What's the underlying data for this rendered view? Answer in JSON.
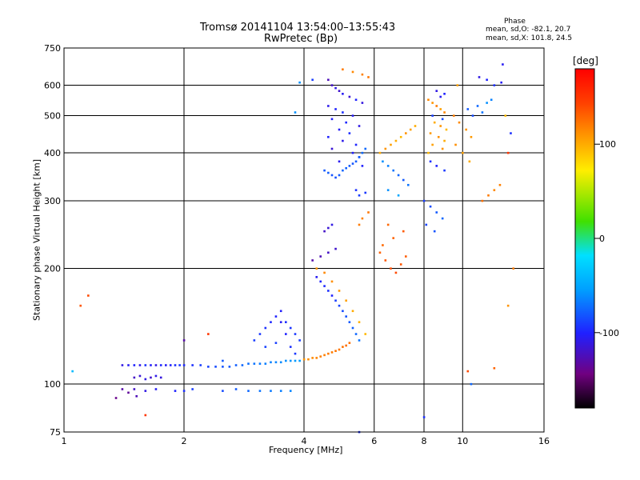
{
  "title_line1": "Tromsø 20141104 13:54:00–13:55:43",
  "title_line2": "RwPretec (Bp)",
  "phase_header": "Phase",
  "phase_o": "mean, sd,O: -82.1, 20.7",
  "phase_x": "mean, sd,X: 101.8, 24.5",
  "colorbar": {
    "unit": "[deg]",
    "ticks": [
      {
        "value": 100,
        "label": "100"
      },
      {
        "value": 0,
        "label": "0"
      },
      {
        "value": -100,
        "label": "-100"
      }
    ],
    "range": [
      -180,
      180
    ]
  },
  "chart_data": {
    "type": "scatter",
    "xlabel": "Frequency [MHz]",
    "ylabel": "Stationary phase Virtual Height [km]",
    "xscale": "log",
    "yscale": "log",
    "xlim": [
      1,
      16
    ],
    "ylim": [
      75,
      750
    ],
    "xticks": [
      {
        "v": 1,
        "label": "1"
      },
      {
        "v": 2,
        "label": "2"
      },
      {
        "v": 4,
        "label": "4"
      },
      {
        "v": 6,
        "label": "6"
      },
      {
        "v": 8,
        "label": "8"
      },
      {
        "v": 10,
        "label": "10"
      },
      {
        "v": 16,
        "label": "16"
      }
    ],
    "yticks": [
      {
        "v": 75,
        "label": "75"
      },
      {
        "v": 100,
        "label": "100"
      },
      {
        "v": 200,
        "label": "200"
      },
      {
        "v": 300,
        "label": "300"
      },
      {
        "v": 400,
        "label": "400"
      },
      {
        "v": 500,
        "label": "500"
      },
      {
        "v": 600,
        "label": "600"
      },
      {
        "v": 750,
        "label": "750"
      }
    ],
    "grid_x": [
      2,
      4,
      6,
      8,
      10
    ],
    "grid_y": [
      100,
      200,
      300,
      400,
      500,
      600
    ],
    "grid": true,
    "points": [
      [
        1.4,
        112,
        -110
      ],
      [
        1.45,
        112,
        -105
      ],
      [
        1.5,
        112,
        -100
      ],
      [
        1.55,
        112,
        -108
      ],
      [
        1.6,
        112,
        -95
      ],
      [
        1.65,
        112,
        -102
      ],
      [
        1.7,
        112,
        -110
      ],
      [
        1.75,
        112,
        -98
      ],
      [
        1.8,
        112,
        -104
      ],
      [
        1.85,
        112,
        -100
      ],
      [
        1.9,
        112,
        -96
      ],
      [
        1.95,
        112,
        -92
      ],
      [
        2.0,
        112,
        -98
      ],
      [
        2.1,
        112,
        -95
      ],
      [
        2.2,
        112,
        -90
      ],
      [
        2.3,
        111,
        -88
      ],
      [
        2.4,
        111,
        -85
      ],
      [
        2.5,
        111,
        -82
      ],
      [
        2.6,
        111,
        -80
      ],
      [
        2.7,
        112,
        -78
      ],
      [
        2.8,
        112,
        -75
      ],
      [
        2.9,
        113,
        -72
      ],
      [
        3.0,
        113,
        -70
      ],
      [
        3.1,
        113,
        -68
      ],
      [
        3.2,
        113,
        -66
      ],
      [
        3.3,
        114,
        -65
      ],
      [
        3.4,
        114,
        -64
      ],
      [
        3.5,
        114,
        -62
      ],
      [
        3.6,
        115,
        -60
      ],
      [
        3.7,
        115,
        -58
      ],
      [
        3.8,
        115,
        -56
      ],
      [
        3.9,
        115,
        -55
      ],
      [
        4.0,
        116,
        110
      ],
      [
        4.1,
        116,
        112
      ],
      [
        4.2,
        117,
        114
      ],
      [
        4.3,
        117,
        116
      ],
      [
        4.4,
        118,
        118
      ],
      [
        4.5,
        119,
        118
      ],
      [
        4.6,
        120,
        120
      ],
      [
        4.7,
        121,
        120
      ],
      [
        4.8,
        122,
        122
      ],
      [
        4.9,
        123,
        122
      ],
      [
        5.0,
        125,
        124
      ],
      [
        5.1,
        126,
        125
      ],
      [
        5.2,
        128,
        125
      ],
      [
        1.5,
        104,
        -120
      ],
      [
        1.55,
        105,
        -115
      ],
      [
        1.6,
        103,
        -110
      ],
      [
        1.65,
        104,
        -118
      ],
      [
        1.7,
        105,
        -108
      ],
      [
        1.75,
        104,
        -112
      ],
      [
        1.4,
        97,
        -130
      ],
      [
        1.5,
        97,
        -120
      ],
      [
        1.6,
        96,
        -110
      ],
      [
        1.7,
        97,
        -105
      ],
      [
        1.9,
        96,
        -100
      ],
      [
        2.0,
        96,
        -95
      ],
      [
        2.1,
        97,
        -90
      ],
      [
        2.5,
        96,
        -85
      ],
      [
        2.7,
        97,
        -80
      ],
      [
        2.9,
        96,
        -75
      ],
      [
        3.1,
        96,
        -70
      ],
      [
        3.3,
        96,
        -68
      ],
      [
        3.5,
        96,
        -66
      ],
      [
        3.7,
        96,
        -64
      ],
      [
        1.35,
        92,
        -140
      ],
      [
        1.45,
        95,
        -135
      ],
      [
        1.52,
        93,
        -125
      ],
      [
        4.6,
        620,
        -125
      ],
      [
        4.7,
        600,
        -120
      ],
      [
        4.8,
        590,
        -110
      ],
      [
        4.9,
        580,
        -118
      ],
      [
        5.0,
        570,
        -105
      ],
      [
        5.2,
        560,
        -115
      ],
      [
        5.4,
        550,
        -100
      ],
      [
        5.6,
        540,
        -112
      ],
      [
        4.6,
        530,
        -108
      ],
      [
        4.8,
        520,
        -100
      ],
      [
        5.0,
        510,
        -95
      ],
      [
        5.3,
        500,
        -105
      ],
      [
        4.7,
        490,
        -102
      ],
      [
        5.1,
        480,
        -98
      ],
      [
        5.5,
        470,
        -110
      ],
      [
        4.9,
        460,
        -104
      ],
      [
        5.2,
        450,
        -96
      ],
      [
        4.6,
        440,
        -100
      ],
      [
        5.0,
        430,
        -108
      ],
      [
        5.4,
        420,
        -99
      ],
      [
        4.7,
        410,
        -115
      ],
      [
        5.3,
        400,
        -102
      ],
      [
        5.5,
        390,
        -97
      ],
      [
        4.9,
        380,
        -106
      ],
      [
        5.6,
        370,
        -101
      ],
      [
        4.5,
        360,
        -80
      ],
      [
        4.6,
        355,
        -78
      ],
      [
        4.7,
        350,
        -82
      ],
      [
        4.8,
        345,
        -84
      ],
      [
        4.9,
        350,
        -80
      ],
      [
        5.0,
        360,
        -76
      ],
      [
        5.1,
        365,
        -78
      ],
      [
        5.2,
        370,
        -80
      ],
      [
        5.3,
        375,
        -82
      ],
      [
        5.4,
        380,
        -79
      ],
      [
        5.5,
        390,
        -77
      ],
      [
        5.6,
        400,
        -75
      ],
      [
        5.7,
        410,
        -74
      ],
      [
        5.4,
        320,
        -95
      ],
      [
        5.5,
        310,
        -90
      ],
      [
        5.7,
        315,
        -92
      ],
      [
        4.5,
        250,
        -120
      ],
      [
        4.6,
        255,
        -115
      ],
      [
        4.7,
        260,
        -110
      ],
      [
        5.5,
        260,
        120
      ],
      [
        5.6,
        270,
        118
      ],
      [
        5.8,
        280,
        122
      ],
      [
        4.3,
        190,
        -105
      ],
      [
        4.4,
        185,
        -100
      ],
      [
        4.5,
        180,
        -98
      ],
      [
        4.6,
        175,
        -95
      ],
      [
        4.7,
        170,
        -100
      ],
      [
        4.8,
        165,
        -90
      ],
      [
        4.9,
        160,
        -88
      ],
      [
        5.0,
        155,
        -85
      ],
      [
        5.1,
        150,
        -82
      ],
      [
        5.2,
        145,
        -80
      ],
      [
        5.3,
        140,
        -78
      ],
      [
        5.4,
        135,
        -75
      ],
      [
        5.5,
        130,
        -70
      ],
      [
        4.3,
        200,
        110
      ],
      [
        4.5,
        195,
        115
      ],
      [
        4.7,
        185,
        112
      ],
      [
        4.9,
        175,
        108
      ],
      [
        5.1,
        165,
        105
      ],
      [
        5.3,
        155,
        100
      ],
      [
        5.5,
        145,
        98
      ],
      [
        5.7,
        135,
        95
      ],
      [
        4.2,
        210,
        -130
      ],
      [
        4.4,
        215,
        -125
      ],
      [
        4.6,
        220,
        -120
      ],
      [
        4.8,
        225,
        -118
      ],
      [
        3.0,
        130,
        -90
      ],
      [
        3.1,
        135,
        -92
      ],
      [
        3.2,
        140,
        -95
      ],
      [
        3.3,
        145,
        -98
      ],
      [
        3.4,
        150,
        -100
      ],
      [
        3.5,
        155,
        -102
      ],
      [
        3.6,
        145,
        -96
      ],
      [
        3.7,
        140,
        -94
      ],
      [
        3.8,
        135,
        -92
      ],
      [
        3.9,
        130,
        -90
      ],
      [
        3.2,
        125,
        -88
      ],
      [
        3.4,
        128,
        -90
      ],
      [
        6.2,
        220,
        130
      ],
      [
        6.4,
        210,
        135
      ],
      [
        6.6,
        200,
        138
      ],
      [
        6.8,
        195,
        140
      ],
      [
        7.0,
        205,
        135
      ],
      [
        7.2,
        215,
        132
      ],
      [
        6.3,
        230,
        128
      ],
      [
        6.7,
        240,
        130
      ],
      [
        7.1,
        250,
        133
      ],
      [
        6.5,
        260,
        128
      ],
      [
        6.2,
        400,
        100
      ],
      [
        6.4,
        410,
        110
      ],
      [
        6.6,
        420,
        105
      ],
      [
        6.8,
        430,
        100
      ],
      [
        7.0,
        440,
        95
      ],
      [
        7.2,
        450,
        110
      ],
      [
        7.4,
        460,
        105
      ],
      [
        7.6,
        470,
        100
      ],
      [
        6.3,
        380,
        -60
      ],
      [
        6.5,
        370,
        -65
      ],
      [
        6.7,
        360,
        -70
      ],
      [
        6.9,
        350,
        -75
      ],
      [
        7.1,
        340,
        -80
      ],
      [
        7.3,
        330,
        -70
      ],
      [
        6.5,
        320,
        -60
      ],
      [
        6.9,
        310,
        -50
      ],
      [
        8.2,
        550,
        115
      ],
      [
        8.4,
        540,
        110
      ],
      [
        8.6,
        530,
        120
      ],
      [
        8.8,
        520,
        105
      ],
      [
        9.0,
        510,
        115
      ],
      [
        8.5,
        480,
        100
      ],
      [
        8.8,
        470,
        110
      ],
      [
        9.1,
        460,
        95
      ],
      [
        8.3,
        450,
        108
      ],
      [
        8.7,
        440,
        112
      ],
      [
        9.0,
        430,
        100
      ],
      [
        8.4,
        420,
        105
      ],
      [
        8.9,
        410,
        110
      ],
      [
        8.2,
        400,
        95
      ],
      [
        8.6,
        580,
        -110
      ],
      [
        8.8,
        560,
        -105
      ],
      [
        9.0,
        570,
        -100
      ],
      [
        8.4,
        500,
        -90
      ],
      [
        8.9,
        490,
        -85
      ],
      [
        8.3,
        380,
        -95
      ],
      [
        8.6,
        370,
        -100
      ],
      [
        9.0,
        360,
        -92
      ],
      [
        8.0,
        300,
        -90
      ],
      [
        8.3,
        290,
        -85
      ],
      [
        8.6,
        280,
        -80
      ],
      [
        8.9,
        270,
        -75
      ],
      [
        8.1,
        260,
        -88
      ],
      [
        8.5,
        250,
        -82
      ],
      [
        9.5,
        500,
        120
      ],
      [
        9.8,
        480,
        115
      ],
      [
        10.2,
        460,
        110
      ],
      [
        10.5,
        440,
        108
      ],
      [
        9.6,
        420,
        112
      ],
      [
        10.0,
        400,
        105
      ],
      [
        10.4,
        380,
        100
      ],
      [
        9.7,
        600,
        105
      ],
      [
        10.3,
        520,
        -80
      ],
      [
        10.6,
        500,
        -85
      ],
      [
        10.9,
        530,
        -75
      ],
      [
        11.2,
        510,
        -70
      ],
      [
        11.5,
        540,
        -60
      ],
      [
        11.8,
        550,
        -65
      ],
      [
        11.0,
        630,
        -110
      ],
      [
        11.5,
        620,
        -100
      ],
      [
        12.0,
        600,
        -95
      ],
      [
        12.5,
        610,
        -105
      ],
      [
        11.2,
        300,
        125
      ],
      [
        11.6,
        310,
        120
      ],
      [
        12.0,
        320,
        115
      ],
      [
        12.4,
        330,
        118
      ],
      [
        12.8,
        500,
        95
      ],
      [
        13.0,
        400,
        150
      ],
      [
        13.2,
        450,
        -95
      ],
      [
        13.4,
        200,
        120
      ],
      [
        13.0,
        160,
        110
      ],
      [
        12.6,
        680,
        -105
      ],
      [
        5.0,
        660,
        120
      ],
      [
        5.3,
        650,
        115
      ],
      [
        5.6,
        640,
        118
      ],
      [
        5.8,
        630,
        122
      ],
      [
        3.5,
        145,
        -105
      ],
      [
        3.6,
        135,
        -100
      ],
      [
        3.7,
        125,
        -95
      ],
      [
        3.8,
        120,
        -92
      ],
      [
        1.05,
        108,
        -40
      ],
      [
        1.1,
        160,
        135
      ],
      [
        2.0,
        130,
        -130
      ],
      [
        2.5,
        115,
        -80
      ],
      [
        2.3,
        135,
        150
      ],
      [
        3.9,
        610,
        -60
      ],
      [
        3.8,
        510,
        -60
      ],
      [
        4.2,
        620,
        -90
      ],
      [
        5.5,
        75,
        -95
      ],
      [
        10.5,
        100,
        -75
      ],
      [
        8.0,
        82,
        -95
      ],
      [
        10.3,
        108,
        140
      ],
      [
        12.0,
        110,
        130
      ],
      [
        1.6,
        83,
        150
      ],
      [
        1.15,
        170,
        140
      ]
    ]
  }
}
